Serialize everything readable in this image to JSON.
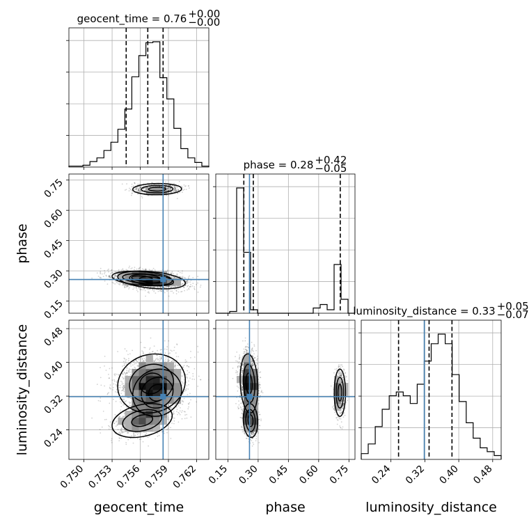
{
  "chart_data": {
    "type": "corner",
    "parameters": [
      "geocent_time",
      "phase",
      "luminosity_distance"
    ],
    "titles": {
      "geocent_time": {
        "name": "geocent_time",
        "median": "0.76",
        "plus": "+0.00",
        "minus": "−0.00"
      },
      "phase": {
        "name": "phase",
        "median": "0.28",
        "plus": "+0.42",
        "minus": "−0.05"
      },
      "luminosity_distance": {
        "name": "luminosity_distance",
        "median": "0.33",
        "plus": "+0.05",
        "minus": "−0.07"
      }
    },
    "ranges": {
      "geocent_time": [
        0.7484,
        0.7633
      ],
      "phase": [
        0.09,
        0.78
      ],
      "luminosity_distance": [
        0.17,
        0.5
      ]
    },
    "ticks": {
      "geocent_time": [
        "0.750",
        "0.753",
        "0.756",
        "0.759",
        "0.762"
      ],
      "phase": [
        "0.15",
        "0.30",
        "0.45",
        "0.60",
        "0.75"
      ],
      "luminosity_distance": [
        "0.24",
        "0.32",
        "0.40",
        "0.48"
      ]
    },
    "truths": {
      "geocent_time": 0.75843,
      "phase": 0.2571,
      "luminosity_distance": 0.3187
    },
    "quantiles": {
      "geocent_time": [
        0.7545,
        0.7568,
        0.75843
      ],
      "phase": [
        0.229,
        0.276,
        0.707
      ],
      "luminosity_distance": [
        0.258,
        0.33,
        0.384
      ]
    },
    "histograms": {
      "geocent_time": [
        1,
        1,
        2,
        6,
        10,
        18,
        27,
        41,
        63,
        98,
        121,
        135,
        136,
        97,
        74,
        42,
        20,
        10,
        5,
        1
      ],
      "phase": [
        0,
        0,
        1,
        72,
        35,
        2,
        0,
        0,
        0,
        0,
        0,
        0,
        0,
        0,
        3,
        5,
        2,
        28,
        8,
        0
      ],
      "luminosity_distance": [
        3,
        8,
        17,
        26,
        33,
        35,
        33,
        29,
        39,
        51,
        60,
        65,
        60,
        44,
        30,
        19,
        11,
        6,
        4,
        2
      ]
    },
    "grid": true
  }
}
